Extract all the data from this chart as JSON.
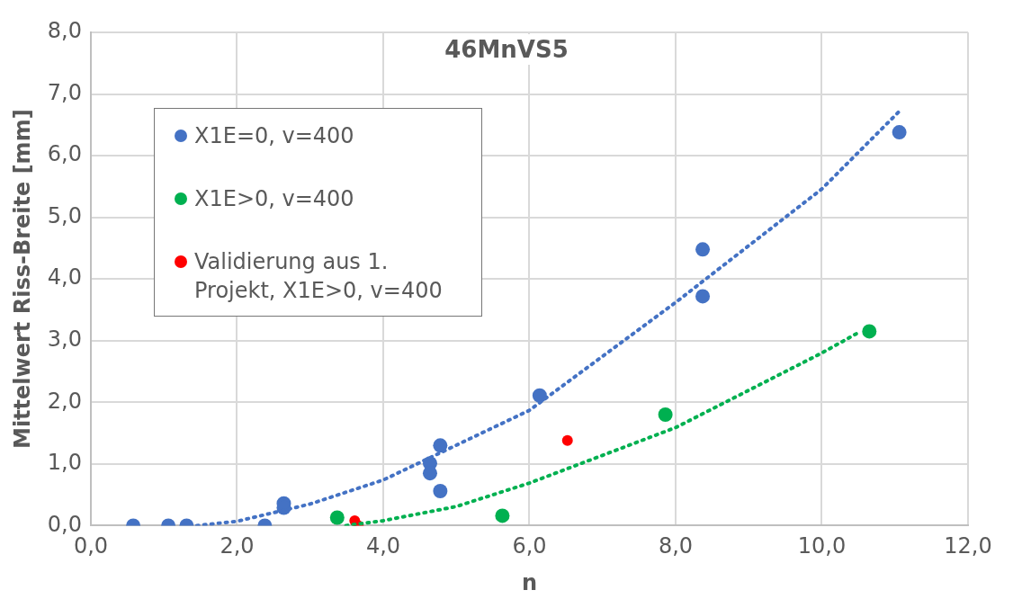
{
  "chart_data": {
    "type": "scatter",
    "title": "46MnVS5",
    "xlabel": "n",
    "ylabel": "Mittelwert Riss-Breite [mm]",
    "xlim": [
      0,
      12
    ],
    "xticks": [
      {
        "value": 0,
        "label": "0,0"
      },
      {
        "value": 2,
        "label": "2,0"
      },
      {
        "value": 4,
        "label": "4,0"
      },
      {
        "value": 6,
        "label": "6,0"
      },
      {
        "value": 8,
        "label": "8,0"
      },
      {
        "value": 10,
        "label": "10,0"
      },
      {
        "value": 12,
        "label": "12,0"
      }
    ],
    "ylim": [
      0,
      8
    ],
    "yticks": [
      {
        "value": 0,
        "label": "0,0"
      },
      {
        "value": 1,
        "label": "1,0"
      },
      {
        "value": 2,
        "label": "2,0"
      },
      {
        "value": 3,
        "label": "3,0"
      },
      {
        "value": 4,
        "label": "4,0"
      },
      {
        "value": 5,
        "label": "5,0"
      },
      {
        "value": 6,
        "label": "6,0"
      },
      {
        "value": 7,
        "label": "7,0"
      },
      {
        "value": 8,
        "label": "8,0"
      }
    ],
    "grid": true,
    "legend": "top left",
    "marker": "circle",
    "series": [
      {
        "name": "X1E=0, v=400",
        "color": "#4472c4",
        "x": [
          0.58,
          1.06,
          1.31,
          2.38,
          2.64,
          2.64,
          4.64,
          4.64,
          4.78,
          4.78,
          6.14,
          8.37,
          8.37,
          11.06
        ],
        "values": [
          0,
          0,
          0,
          0,
          0.36,
          0.29,
          1.01,
          0.85,
          1.3,
          0.56,
          2.11,
          4.48,
          3.72,
          6.38
        ]
      },
      {
        "name": "X1E>0, v=400",
        "color": "#00b050",
        "x": [
          3.37,
          5.63,
          7.86,
          10.65
        ],
        "values": [
          0.13,
          0.16,
          1.8,
          3.15
        ]
      },
      {
        "name": "Validierung aus 1. Projekt, X1E>0, v=400",
        "color": "#ff0000",
        "x": [
          3.61,
          3.66,
          6.52
        ],
        "values": [
          0.08,
          0,
          1.38
        ]
      },
      {
        "type": "line",
        "color": "#4472c4",
        "line_style": "dotted",
        "marker": "none",
        "x": [
          1.45,
          2,
          3,
          4,
          6,
          8,
          10,
          11.06
        ],
        "values": [
          0,
          0.07,
          0.35,
          0.74,
          1.87,
          3.62,
          5.46,
          6.72
        ]
      },
      {
        "type": "line",
        "color": "#00b050",
        "line_style": "dotted",
        "marker": "none",
        "x": [
          3.49,
          4,
          5,
          6,
          8,
          10,
          10.5
        ],
        "values": [
          0,
          0.08,
          0.31,
          0.69,
          1.59,
          2.8,
          3.13
        ]
      }
    ]
  }
}
